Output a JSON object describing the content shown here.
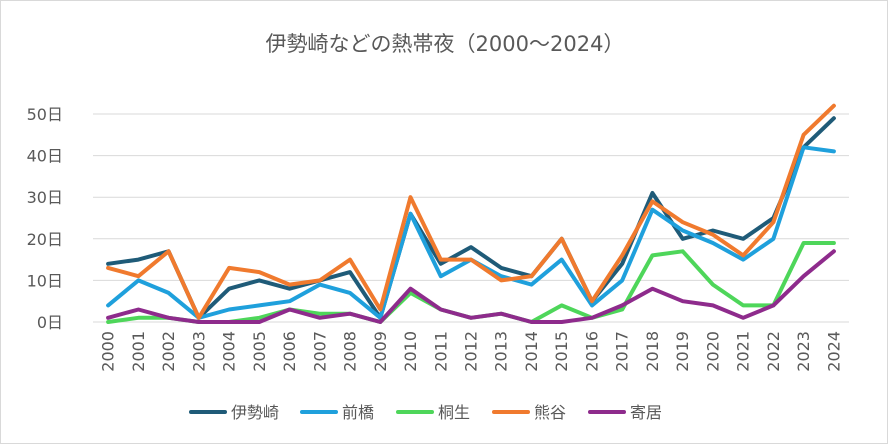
{
  "chart_data": {
    "type": "line",
    "title": "伊勢崎などの熱帯夜（2000～2024）",
    "xlabel": "",
    "ylabel": "",
    "x": [
      "2000",
      "2001",
      "2002",
      "2003",
      "2004",
      "2005",
      "2006",
      "2007",
      "2008",
      "2009",
      "2010",
      "2011",
      "2012",
      "2013",
      "2014",
      "2015",
      "2016",
      "2017",
      "2018",
      "2019",
      "2020",
      "2021",
      "2022",
      "2023",
      "2024"
    ],
    "ylim": [
      0,
      50
    ],
    "y_ticks": [
      {
        "value": 0,
        "label": "0日"
      },
      {
        "value": 10,
        "label": "10日"
      },
      {
        "value": 20,
        "label": "20日"
      },
      {
        "value": 30,
        "label": "30日"
      },
      {
        "value": 40,
        "label": "40日"
      },
      {
        "value": 50,
        "label": "50日"
      }
    ],
    "grid": true,
    "legend_position": "bottom",
    "series": [
      {
        "name": "伊勢崎",
        "color": "#1F5B78",
        "values": [
          14,
          15,
          17,
          1,
          8,
          10,
          8,
          10,
          12,
          1,
          26,
          14,
          18,
          13,
          11,
          20,
          5,
          14,
          31,
          20,
          22,
          20,
          25,
          42,
          49
        ]
      },
      {
        "name": "前橋",
        "color": "#1FA0DC",
        "values": [
          4,
          10,
          7,
          1,
          3,
          4,
          5,
          9,
          7,
          1,
          26,
          11,
          15,
          11,
          9,
          15,
          4,
          10,
          27,
          22,
          19,
          15,
          20,
          42,
          41
        ]
      },
      {
        "name": "桐生",
        "color": "#4ED65A",
        "values": [
          0,
          1,
          1,
          0,
          0,
          1,
          3,
          2,
          2,
          0,
          7,
          3,
          1,
          2,
          0,
          4,
          1,
          3,
          16,
          17,
          9,
          4,
          4,
          19,
          19
        ]
      },
      {
        "name": "熊谷",
        "color": "#F07A2E",
        "values": [
          13,
          11,
          17,
          1,
          13,
          12,
          9,
          10,
          15,
          3,
          30,
          15,
          15,
          10,
          11,
          20,
          5,
          16,
          29,
          24,
          21,
          16,
          24,
          45,
          52
        ]
      },
      {
        "name": "寄居",
        "color": "#8E2B8C",
        "values": [
          1,
          3,
          1,
          0,
          0,
          0,
          3,
          1,
          2,
          0,
          8,
          3,
          1,
          2,
          0,
          0,
          1,
          4,
          8,
          5,
          4,
          1,
          4,
          11,
          17
        ]
      }
    ]
  }
}
